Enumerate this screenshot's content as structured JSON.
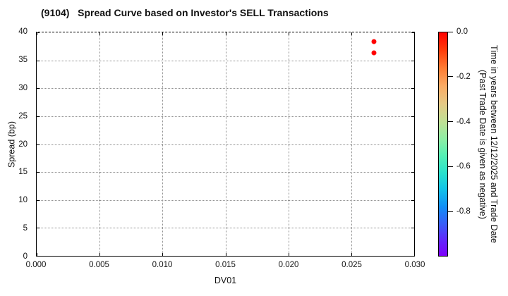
{
  "title": "(9104)   Spread Curve based on Investor's SELL Transactions",
  "colors": {
    "background": "#ffffff",
    "frame": "#000000",
    "grid": "#909090",
    "text": "#111111",
    "point_red": "#ff0000"
  },
  "chart_data": {
    "type": "scatter",
    "title": "(9104)   Spread Curve based on Investor's SELL Transactions",
    "xlabel": "DV01",
    "ylabel": "Spread (bp)",
    "xlim": [
      0.0,
      0.03
    ],
    "ylim": [
      0,
      40
    ],
    "xticks": [
      0.0,
      0.005,
      0.01,
      0.015,
      0.02,
      0.025,
      0.03
    ],
    "xtick_labels": [
      "0.000",
      "0.005",
      "0.010",
      "0.015",
      "0.020",
      "0.025",
      "0.030"
    ],
    "yticks": [
      0,
      5,
      10,
      15,
      20,
      25,
      30,
      35,
      40
    ],
    "ytick_labels": [
      "0",
      "5",
      "10",
      "15",
      "20",
      "25",
      "30",
      "35",
      "40"
    ],
    "grid": true,
    "grid_style": "dotted",
    "legend": "none",
    "points": [
      {
        "x": 0.0268,
        "y": 38.3,
        "time_value": 0.0,
        "color": "#ff0000"
      },
      {
        "x": 0.0268,
        "y": 36.3,
        "time_value": 0.0,
        "color": "#ff0000"
      }
    ],
    "colorbar": {
      "label_line1": "Time in years between 12/12/2025 and Trade Date",
      "label_line2": "(Past Trade Date is given as negative)",
      "max": 0.0,
      "min": -1.0,
      "ticks": [
        0.0,
        -0.2,
        -0.4,
        -0.6,
        -0.8
      ],
      "tick_labels": [
        "0.0",
        "-0.2",
        "-0.4",
        "-0.6",
        "-0.8"
      ],
      "gradient": [
        {
          "pos": 0,
          "color": "#ff0000"
        },
        {
          "pos": 8,
          "color": "#ff3c0a"
        },
        {
          "pos": 16,
          "color": "#ff7c33"
        },
        {
          "pos": 24,
          "color": "#fbab64"
        },
        {
          "pos": 32,
          "color": "#e5c985"
        },
        {
          "pos": 40,
          "color": "#bfe094"
        },
        {
          "pos": 48,
          "color": "#8ceea5"
        },
        {
          "pos": 55,
          "color": "#55f0b4"
        },
        {
          "pos": 63,
          "color": "#28e2cd"
        },
        {
          "pos": 70,
          "color": "#12c4e8"
        },
        {
          "pos": 78,
          "color": "#118ff7"
        },
        {
          "pos": 86,
          "color": "#3a5cf8"
        },
        {
          "pos": 93,
          "color": "#6226fc"
        },
        {
          "pos": 100,
          "color": "#7d00fa"
        }
      ]
    }
  }
}
